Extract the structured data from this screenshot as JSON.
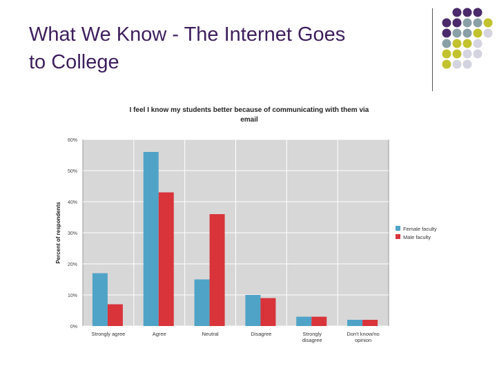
{
  "slide": {
    "title_line1": "What We Know - The Internet Goes",
    "title_line2": "to College"
  },
  "decoration": {
    "dot_colors": [
      "#4a2a6a",
      "#8aa0a6",
      "#c2c22e",
      "#d4d4e0"
    ]
  },
  "chart_data": {
    "type": "bar",
    "title_line1": "I feel I know my students better because of communicating with them via",
    "title_line2": "email",
    "ylabel": "Percent of respondents",
    "xlabel": "",
    "ylim": [
      0,
      60
    ],
    "yticks": [
      0,
      10,
      20,
      30,
      40,
      50,
      60
    ],
    "ytick_labels": [
      "0%",
      "10%",
      "20%",
      "30%",
      "40%",
      "50%",
      "60%"
    ],
    "categories": [
      [
        "Strongly agree"
      ],
      [
        "Agree"
      ],
      [
        "Neutral"
      ],
      [
        "Disagree"
      ],
      [
        "Strongly",
        "disagree"
      ],
      [
        "Don't know/no",
        "opinion"
      ]
    ],
    "series": [
      {
        "name": "Female faculty",
        "color": "#4fa3c7",
        "values": [
          17,
          56,
          15,
          10,
          3,
          2
        ]
      },
      {
        "name": "Male faculty",
        "color": "#d8343a",
        "values": [
          7,
          43,
          36,
          9,
          3,
          2
        ]
      }
    ],
    "grid": true,
    "legend_position": "right",
    "plot_background": "#d7d7d7"
  }
}
